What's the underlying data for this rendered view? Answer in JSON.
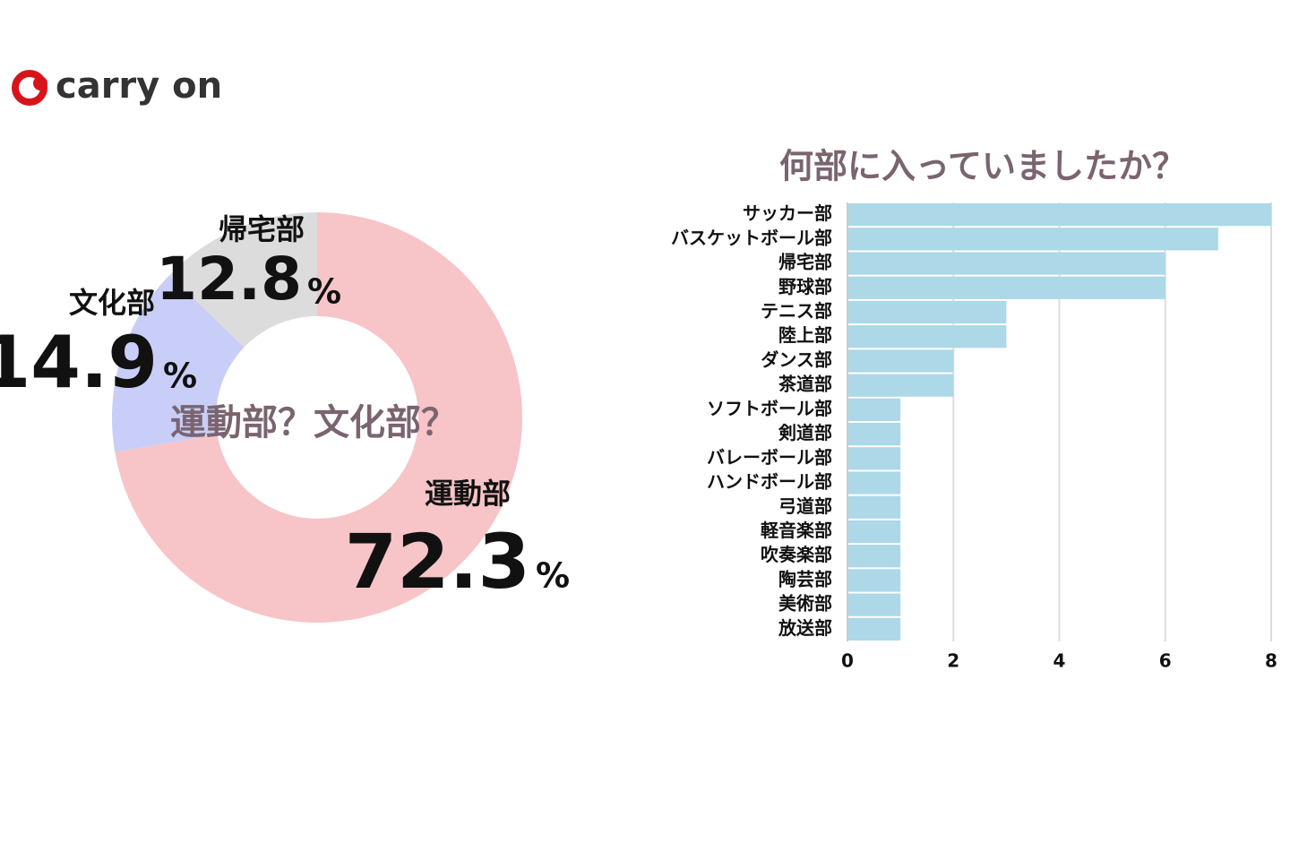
{
  "logo": "carry on",
  "chart_data": [
    {
      "type": "donut",
      "title": "運動部？文化部？",
      "categories": [
        "運動部",
        "文化部",
        "帰宅部"
      ],
      "values": [
        72.3,
        14.9,
        12.8
      ],
      "unit": "%",
      "colors": [
        "#f7c4c7",
        "#c8cef7",
        "#dcdcdc"
      ]
    },
    {
      "type": "hbar",
      "title": "何部に入っていましたか？",
      "categories": [
        "サッカー部",
        "バスケットボール部",
        "帰宅部",
        "野球部",
        "テニス部",
        "陸上部",
        "ダンス部",
        "茶道部",
        "ソフトボール部",
        "剣道部",
        "バレーボール部",
        "ハンドボール部",
        "弓道部",
        "軽音楽部",
        "吹奏楽部",
        "陶芸部",
        "美術部",
        "放送部"
      ],
      "values": [
        8,
        7,
        6,
        6,
        3,
        3,
        2,
        2,
        1,
        1,
        1,
        1,
        1,
        1,
        1,
        1,
        1,
        1
      ],
      "color": "#acd8e8",
      "xlim": [
        0,
        8
      ],
      "xticks": [
        0,
        2,
        4,
        6,
        8
      ],
      "grid": true
    }
  ]
}
